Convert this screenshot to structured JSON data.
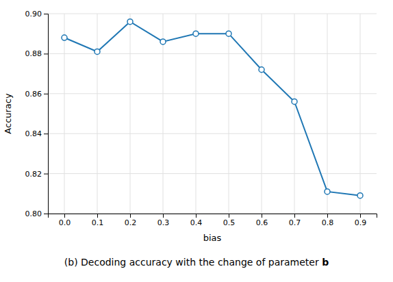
{
  "chart_data": {
    "type": "line",
    "x": [
      0.0,
      0.1,
      0.2,
      0.3,
      0.4,
      0.5,
      0.6,
      0.7,
      0.8,
      0.9
    ],
    "values": [
      0.888,
      0.881,
      0.896,
      0.886,
      0.89,
      0.89,
      0.872,
      0.856,
      0.811,
      0.809
    ],
    "color": "#1f77b4",
    "marker": "circle",
    "x_label": "bias",
    "y_label": "Accuracy",
    "xlim": [
      -0.05,
      0.95
    ],
    "ylim": [
      0.8,
      0.9
    ],
    "xticks": [
      {
        "value": 0.0,
        "label": "0.0"
      },
      0.1,
      0.2,
      0.3,
      0.4,
      0.5,
      0.6,
      0.7,
      0.8,
      0.9
    ],
    "yticks": [
      {
        "value": 0.8,
        "label": "0.80"
      },
      0.82,
      0.84,
      0.86,
      0.88,
      {
        "value": 0.9,
        "label": "0.90"
      }
    ],
    "grid": true,
    "annotations": [
      "(b) Decoding accuracy with the change of parameter ",
      "b"
    ]
  }
}
